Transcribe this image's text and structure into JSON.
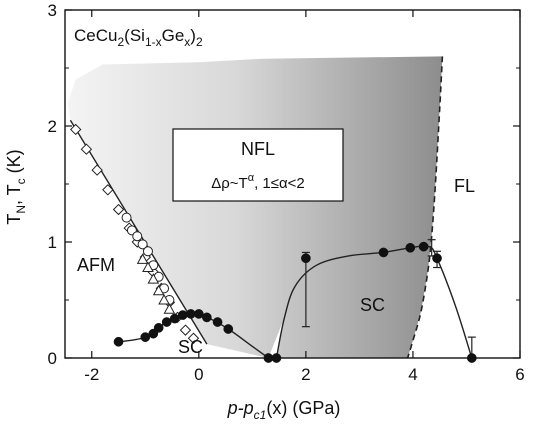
{
  "chart_data": {
    "type": "scatter",
    "title": "",
    "compound_label": {
      "base": "CeCu",
      "sub1": "2",
      "mid": "(Si",
      "sub2": "1-x",
      "mid2": "Ge",
      "sub3": "x",
      "end": ")",
      "sub4": "2"
    },
    "xlabel": {
      "italic_part": "p-p",
      "sub": "c1",
      "rest": "(x) (GPa)"
    },
    "ylabel": {
      "t": "T",
      "sub_n": "N",
      "sep": ", T",
      "sub_c": "c",
      "unit": " (K)"
    },
    "xlim": [
      -2.5,
      6
    ],
    "ylim": [
      0,
      3
    ],
    "x_ticks": [
      -2,
      0,
      2,
      4,
      6
    ],
    "x_tick_labels": [
      "-2",
      "0",
      "2",
      "4",
      "6"
    ],
    "y_ticks": [
      0,
      1,
      2,
      3
    ],
    "y_tick_labels": [
      "0",
      "1",
      "2",
      "3"
    ],
    "regions": {
      "afm": "AFM",
      "sc_left": "SC",
      "sc_right": "SC",
      "fl": "FL",
      "nfl_title": "NFL",
      "nfl_formula": {
        "lead": "Δρ~T",
        "sup": "α",
        "tail": ", 1≤α<2"
      }
    },
    "series": [
      {
        "marker": "diamond",
        "values": [
          [
            -2.3,
            1.97
          ],
          [
            -2.1,
            1.8
          ],
          [
            -1.9,
            1.62
          ],
          [
            -1.7,
            1.45
          ],
          [
            -1.5,
            1.28
          ],
          [
            -1.3,
            1.12
          ],
          [
            -1.15,
            1.0
          ],
          [
            -1.0,
            0.87
          ],
          [
            -0.85,
            0.74
          ],
          [
            -0.7,
            0.6
          ],
          [
            -0.55,
            0.48
          ],
          [
            -0.4,
            0.35
          ],
          [
            -0.25,
            0.24
          ],
          [
            -0.1,
            0.17
          ]
        ]
      },
      {
        "marker": "circle-open",
        "values": [
          [
            -1.35,
            1.21
          ],
          [
            -1.25,
            1.1
          ],
          [
            -1.15,
            1.05
          ],
          [
            -1.05,
            0.98
          ],
          [
            -0.95,
            0.92
          ],
          [
            -0.85,
            0.8
          ],
          [
            -0.75,
            0.7
          ],
          [
            -0.65,
            0.6
          ],
          [
            -0.55,
            0.5
          ]
        ]
      },
      {
        "marker": "triangle-open",
        "values": [
          [
            -1.05,
            0.85
          ],
          [
            -0.95,
            0.78
          ],
          [
            -0.85,
            0.68
          ],
          [
            -0.75,
            0.58
          ],
          [
            -0.65,
            0.5
          ],
          [
            -0.55,
            0.42
          ]
        ]
      },
      {
        "marker": "circle-filled",
        "values": [
          [
            -1.5,
            0.14
          ],
          [
            -1.0,
            0.18
          ],
          [
            -0.85,
            0.21
          ],
          [
            -0.75,
            0.26
          ],
          [
            -0.6,
            0.31
          ],
          [
            -0.45,
            0.34
          ],
          [
            -0.3,
            0.37
          ],
          [
            -0.15,
            0.38
          ],
          [
            0.0,
            0.38
          ],
          [
            0.15,
            0.35
          ],
          [
            0.35,
            0.31
          ],
          [
            0.55,
            0.25
          ],
          [
            1.3,
            0.0
          ],
          [
            1.45,
            0.0
          ],
          [
            2.0,
            0.86
          ],
          [
            3.45,
            0.91
          ],
          [
            3.95,
            0.95
          ],
          [
            4.2,
            0.96
          ],
          [
            4.45,
            0.86
          ],
          [
            5.1,
            0.0
          ]
        ]
      }
    ],
    "error_bars": [
      {
        "x": 2.0,
        "y": 0.86,
        "low": 0.27,
        "high": 0.91
      },
      {
        "x": 4.35,
        "y": 0.96,
        "low": 0.88,
        "high": 1.02
      },
      {
        "x": 4.45,
        "y": 0.86,
        "low": 0.78,
        "high": 0.92
      },
      {
        "x": 5.1,
        "y": 0.0,
        "low": 0.0,
        "high": 0.18
      }
    ],
    "lines": {
      "afm_boundary": [
        [
          -2.4,
          2.05
        ],
        [
          0.15,
          0.12
        ]
      ],
      "sc1_curve": [
        [
          -1.5,
          0.14
        ],
        [
          -1.0,
          0.18
        ],
        [
          -0.6,
          0.31
        ],
        [
          -0.15,
          0.38
        ],
        [
          0.15,
          0.35
        ],
        [
          0.55,
          0.25
        ],
        [
          1.0,
          0.1
        ],
        [
          1.3,
          0.0
        ]
      ],
      "sc2_curve": [
        [
          1.45,
          0.0
        ],
        [
          1.6,
          0.35
        ],
        [
          1.8,
          0.62
        ],
        [
          2.2,
          0.8
        ],
        [
          2.8,
          0.88
        ],
        [
          3.45,
          0.91
        ],
        [
          3.95,
          0.95
        ],
        [
          4.3,
          0.96
        ],
        [
          4.45,
          0.86
        ],
        [
          4.8,
          0.44
        ],
        [
          5.1,
          0.0
        ]
      ],
      "fl_dashed": [
        [
          4.55,
          2.6
        ],
        [
          4.5,
          2.15
        ],
        [
          4.42,
          1.5
        ],
        [
          4.35,
          1.05
        ],
        [
          4.28,
          0.75
        ],
        [
          4.15,
          0.4
        ],
        [
          4.0,
          0.15
        ],
        [
          3.9,
          0.0
        ]
      ]
    },
    "nfl_region": {
      "top": [
        [
          -2.45,
          2.2
        ],
        [
          -2.3,
          2.4
        ],
        [
          -1.8,
          2.53
        ],
        [
          0.0,
          2.55
        ],
        [
          1.2,
          2.58
        ],
        [
          4.55,
          2.6
        ]
      ],
      "right": [
        [
          4.55,
          2.6
        ],
        [
          4.5,
          2.15
        ],
        [
          4.42,
          1.5
        ],
        [
          4.35,
          1.05
        ],
        [
          4.28,
          0.75
        ],
        [
          4.15,
          0.4
        ],
        [
          4.0,
          0.15
        ]
      ],
      "bottom": [
        [
          4.0,
          0.15
        ],
        [
          3.9,
          0.0
        ],
        [
          1.45,
          0.0
        ],
        [
          1.6,
          0.35
        ],
        [
          1.3,
          0.0
        ],
        [
          0.15,
          0.12
        ],
        [
          -2.4,
          2.05
        ]
      ]
    }
  }
}
